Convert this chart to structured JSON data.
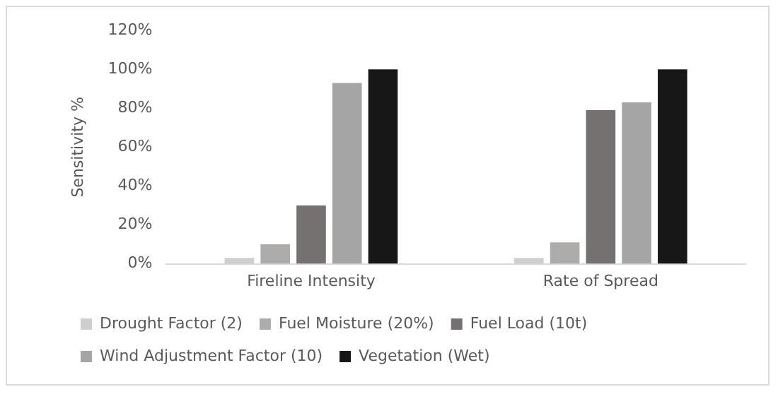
{
  "chart_data": {
    "type": "bar",
    "ylabel": "Sensitivity %",
    "categories": [
      "Fireline Intensity",
      "Rate of Spread"
    ],
    "series": [
      {
        "name": "Drought Factor (2)",
        "color": "#d0cece",
        "values": [
          3,
          3
        ]
      },
      {
        "name": "Fuel Moisture (20%)",
        "color": "#aeabab",
        "values": [
          10,
          11
        ]
      },
      {
        "name": "Fuel Load (10t)",
        "color": "#767171",
        "values": [
          30,
          79
        ]
      },
      {
        "name": "Wind Adjustment Factor (10)",
        "color": "#a5a5a5",
        "values": [
          93,
          83
        ]
      },
      {
        "name": "Vegetation (Wet)",
        "color": "#171717",
        "values": [
          100,
          100
        ]
      }
    ],
    "ylim": [
      0,
      120
    ],
    "yticks": [
      {
        "value": 0,
        "label": "0%"
      },
      {
        "value": 20,
        "label": "20%"
      },
      {
        "value": 40,
        "label": "40%"
      },
      {
        "value": 60,
        "label": "60%"
      },
      {
        "value": 80,
        "label": "80%"
      },
      {
        "value": 100,
        "label": "100%"
      },
      {
        "value": 120,
        "label": "120%"
      }
    ],
    "grid": false,
    "legend": "bottom"
  }
}
